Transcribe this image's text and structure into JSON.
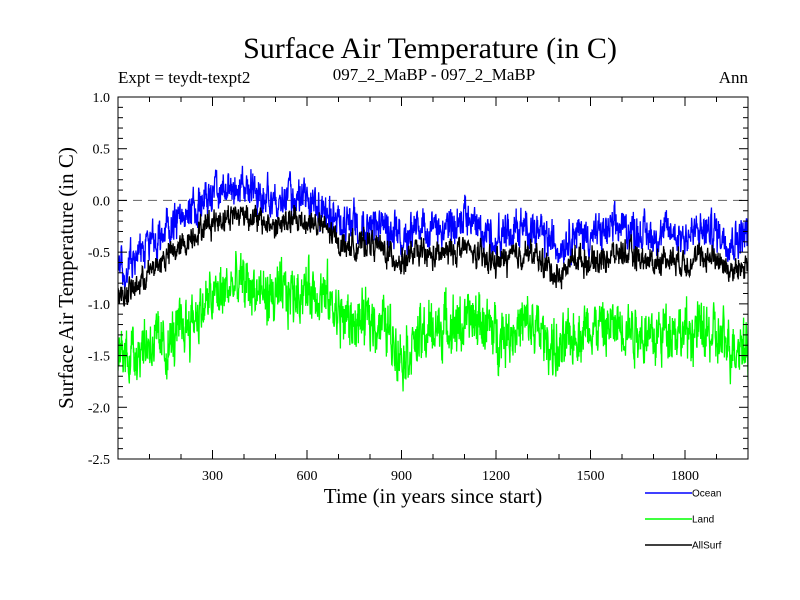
{
  "chart_data": {
    "type": "line",
    "title": "Surface Air Temperature (in C)",
    "subtitle_left": "Expt = teydt-texpt2",
    "subtitle_center": "097_2_MaBP - 097_2_MaBP",
    "subtitle_right": "Ann",
    "xlabel": "Time (in years since start)",
    "ylabel": "Surface Air Temperature (in C)",
    "xlim": [
      0,
      2000
    ],
    "ylim": [
      -2.5,
      1.0
    ],
    "xticks": [
      300,
      600,
      900,
      1200,
      1500,
      1800
    ],
    "xtick_labels": [
      "300",
      "600",
      "900",
      "1200",
      "1500",
      "1800"
    ],
    "yticks": [
      -2.5,
      -2.0,
      -1.5,
      -1.0,
      -0.5,
      0.0,
      0.5,
      1.0
    ],
    "ytick_labels": [
      "-2.5",
      "-2.0",
      "-1.5",
      "-1.0",
      "-0.5",
      "0.0",
      "0.5",
      "1.0"
    ],
    "reference_line": {
      "y": 0.0,
      "style": "dashed",
      "color": "#777777"
    },
    "series": [
      {
        "name": "Ocean",
        "color": "#0000ff",
        "x": [
          0,
          50,
          100,
          150,
          200,
          250,
          300,
          350,
          400,
          450,
          500,
          550,
          600,
          650,
          700,
          750,
          800,
          850,
          900,
          950,
          1000,
          1050,
          1100,
          1150,
          1200,
          1250,
          1300,
          1350,
          1400,
          1450,
          1500,
          1550,
          1600,
          1650,
          1700,
          1750,
          1800,
          1850,
          1900,
          1950,
          2000
        ],
        "values": [
          -0.7,
          -0.6,
          -0.45,
          -0.3,
          -0.2,
          -0.05,
          0.05,
          0.1,
          0.15,
          0.05,
          0.0,
          0.05,
          0.0,
          -0.05,
          -0.2,
          -0.25,
          -0.2,
          -0.3,
          -0.35,
          -0.25,
          -0.3,
          -0.25,
          -0.2,
          -0.3,
          -0.35,
          -0.3,
          -0.25,
          -0.35,
          -0.45,
          -0.3,
          -0.35,
          -0.3,
          -0.25,
          -0.3,
          -0.35,
          -0.3,
          -0.35,
          -0.3,
          -0.3,
          -0.4,
          -0.3
        ]
      },
      {
        "name": "Land",
        "color": "#00ff00",
        "x": [
          0,
          50,
          100,
          150,
          200,
          250,
          300,
          350,
          400,
          450,
          500,
          550,
          600,
          650,
          700,
          750,
          800,
          850,
          900,
          950,
          1000,
          1050,
          1100,
          1150,
          1200,
          1250,
          1300,
          1350,
          1400,
          1450,
          1500,
          1550,
          1600,
          1650,
          1700,
          1750,
          1800,
          1850,
          1900,
          1950,
          2000
        ],
        "values": [
          -1.5,
          -1.45,
          -1.35,
          -1.45,
          -1.25,
          -1.1,
          -0.95,
          -0.85,
          -0.8,
          -0.9,
          -0.95,
          -0.9,
          -0.85,
          -0.9,
          -1.1,
          -1.2,
          -1.15,
          -1.2,
          -1.5,
          -1.35,
          -1.25,
          -1.2,
          -1.2,
          -1.15,
          -1.3,
          -1.25,
          -1.2,
          -1.3,
          -1.5,
          -1.3,
          -1.2,
          -1.25,
          -1.2,
          -1.25,
          -1.35,
          -1.2,
          -1.3,
          -1.25,
          -1.35,
          -1.4,
          -1.35
        ]
      },
      {
        "name": "AllSurf",
        "color": "#000000",
        "x": [
          0,
          50,
          100,
          150,
          200,
          250,
          300,
          350,
          400,
          450,
          500,
          550,
          600,
          650,
          700,
          750,
          800,
          850,
          900,
          950,
          1000,
          1050,
          1100,
          1150,
          1200,
          1250,
          1300,
          1350,
          1400,
          1450,
          1500,
          1550,
          1600,
          1650,
          1700,
          1750,
          1800,
          1850,
          1900,
          1950,
          2000
        ],
        "values": [
          -0.95,
          -0.85,
          -0.7,
          -0.55,
          -0.45,
          -0.3,
          -0.2,
          -0.15,
          -0.12,
          -0.2,
          -0.25,
          -0.2,
          -0.2,
          -0.25,
          -0.4,
          -0.45,
          -0.4,
          -0.5,
          -0.6,
          -0.5,
          -0.55,
          -0.5,
          -0.45,
          -0.55,
          -0.6,
          -0.55,
          -0.5,
          -0.6,
          -0.75,
          -0.55,
          -0.6,
          -0.55,
          -0.5,
          -0.55,
          -0.6,
          -0.55,
          -0.6,
          -0.55,
          -0.55,
          -0.7,
          -0.6
        ]
      }
    ],
    "legend": [
      "Ocean",
      "Land",
      "AllSurf"
    ]
  }
}
